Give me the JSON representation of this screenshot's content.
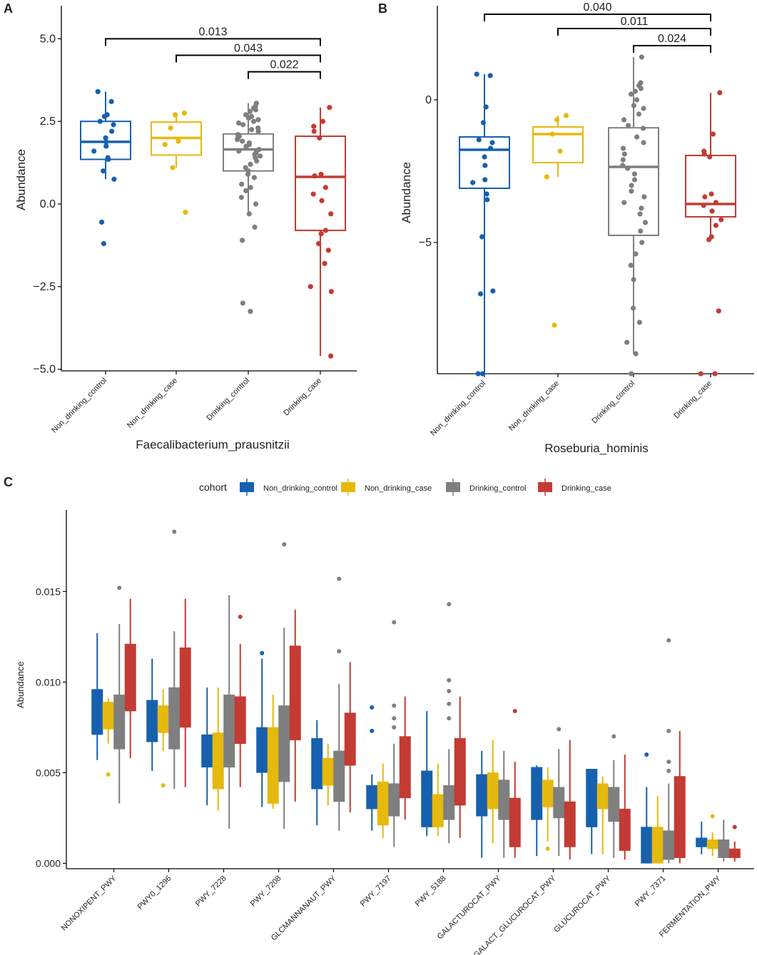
{
  "colors": {
    "Non_drinking_control": "#1660AE",
    "Non_drinking_case": "#E6B90E",
    "Drinking_control": "#7F7F7F",
    "Drinking_case": "#C33B33",
    "axis": "#000000"
  },
  "chart_data": [
    {
      "panel": "A",
      "type": "box",
      "title": "",
      "xlabel": "Faecalibacterium_prausnitzii",
      "ylabel": "Abundance",
      "ylim": [
        -5.05,
        6.0
      ],
      "yticks": [
        5.0,
        2.5,
        0.0,
        -2.5,
        -5.0
      ],
      "ytick_labels": [
        "5.0",
        "2.5",
        "0.0",
        "−2.5",
        "−5.0"
      ],
      "categories": [
        "Non_drinking_control",
        "Non_drinking_case",
        "Drinking_control",
        "Drinking_case"
      ],
      "boxes": [
        {
          "q1": 1.35,
          "median": 1.88,
          "q3": 2.5,
          "whisker_low": 0.75,
          "whisker_high": 3.4,
          "points": [
            3.4,
            3.1,
            2.7,
            2.65,
            2.5,
            2.4,
            2.2,
            2.0,
            1.88,
            1.75,
            1.6,
            1.4,
            1.35,
            1.0,
            0.75,
            -0.55,
            -1.2
          ]
        },
        {
          "q1": 1.48,
          "median": 2.0,
          "q3": 2.48,
          "whisker_low": 1.1,
          "whisker_high": 2.75,
          "points": [
            2.75,
            2.7,
            2.3,
            1.9,
            1.8,
            1.1,
            -0.25
          ]
        },
        {
          "q1": 1.0,
          "median": 1.65,
          "q3": 2.12,
          "whisker_low": -0.3,
          "whisker_high": 3.05,
          "points": [
            3.05,
            2.95,
            2.9,
            2.85,
            2.8,
            2.7,
            2.65,
            2.6,
            2.55,
            2.5,
            2.45,
            2.4,
            2.3,
            2.25,
            2.2,
            2.1,
            2.05,
            2.0,
            1.95,
            1.9,
            1.85,
            1.8,
            1.75,
            1.7,
            1.65,
            1.6,
            1.55,
            1.5,
            1.45,
            1.4,
            1.3,
            1.2,
            1.1,
            1.0,
            0.9,
            0.8,
            0.6,
            0.5,
            0.4,
            0.2,
            0.0,
            -0.3,
            -0.7,
            -1.1,
            -3.0,
            -3.25
          ]
        },
        {
          "q1": -0.8,
          "median": 0.82,
          "q3": 2.05,
          "whisker_low": -4.6,
          "whisker_high": 2.92,
          "points": [
            2.92,
            2.5,
            2.35,
            2.2,
            2.0,
            0.9,
            0.85,
            0.5,
            0.3,
            0.1,
            -0.3,
            -0.8,
            -0.9,
            -1.2,
            -1.4,
            -1.8,
            -2.5,
            -2.65,
            -4.6
          ]
        }
      ],
      "comparisons": [
        {
          "from": 0,
          "to": 3,
          "label": "0.013",
          "y": 5.0
        },
        {
          "from": 1,
          "to": 3,
          "label": "0.043",
          "y": 4.5
        },
        {
          "from": 2,
          "to": 3,
          "label": "0.022",
          "y": 4.0
        }
      ]
    },
    {
      "panel": "B",
      "type": "box",
      "title": "",
      "xlabel": "Roseburia_hominis",
      "ylabel": "Abundance",
      "ylim": [
        -9.6,
        3.3
      ],
      "yticks": [
        0,
        -5
      ],
      "ytick_labels": [
        "0",
        "−5"
      ],
      "categories": [
        "Non_drinking_control",
        "Non_drinking_case",
        "Drinking_control",
        "Drinking_case"
      ],
      "boxes": [
        {
          "q1": -3.1,
          "median": -1.75,
          "q3": -1.3,
          "whisker_low": -9.6,
          "whisker_high": 0.9,
          "points": [
            0.9,
            0.85,
            -0.25,
            -0.8,
            -1.4,
            -1.5,
            -1.7,
            -2.0,
            -2.3,
            -2.8,
            -2.9,
            -3.3,
            -3.5,
            -4.8,
            -6.7,
            -6.8,
            -9.6,
            -9.6
          ]
        },
        {
          "q1": -2.2,
          "median": -1.2,
          "q3": -0.95,
          "whisker_low": -2.7,
          "whisker_high": -0.55,
          "points": [
            -0.55,
            -0.7,
            -1.2,
            -1.8,
            -2.7,
            -7.9
          ]
        },
        {
          "q1": -4.75,
          "median": -2.35,
          "q3": -0.98,
          "whisker_low": -8.9,
          "whisker_high": 1.5,
          "points": [
            1.5,
            0.6,
            0.5,
            0.4,
            0.3,
            0.2,
            0.0,
            -0.2,
            -0.3,
            -0.5,
            -0.7,
            -0.9,
            -1.0,
            -1.3,
            -1.5,
            -1.7,
            -1.9,
            -2.1,
            -2.3,
            -2.4,
            -2.6,
            -2.8,
            -3.0,
            -3.2,
            -3.4,
            -3.6,
            -3.8,
            -4.0,
            -4.3,
            -4.6,
            -5.0,
            -5.4,
            -5.8,
            -6.3,
            -7.3,
            -7.8,
            -8.5,
            -8.9,
            -9.6
          ]
        },
        {
          "q1": -4.1,
          "median": -3.65,
          "q3": -1.95,
          "whisker_low": -4.9,
          "whisker_high": 0.25,
          "points": [
            0.25,
            -1.2,
            -1.8,
            -1.9,
            -2.0,
            -3.3,
            -3.4,
            -3.6,
            -3.7,
            -3.9,
            -4.2,
            -4.4,
            -4.8,
            -4.9,
            -7.4,
            -9.6,
            -9.6
          ]
        }
      ],
      "comparisons": [
        {
          "from": 0,
          "to": 3,
          "label": "0.040",
          "y": 3.0
        },
        {
          "from": 1,
          "to": 3,
          "label": "0.011",
          "y": 2.5
        },
        {
          "from": 2,
          "to": 3,
          "label": "0.024",
          "y": 1.9
        }
      ]
    },
    {
      "panel": "C",
      "type": "box",
      "title": "",
      "xlabel": "",
      "ylabel": "Abundance",
      "ylim": [
        -0.0003,
        0.0195
      ],
      "yticks": [
        0.015,
        0.01,
        0.005,
        0.0
      ],
      "ytick_labels": [
        "0.015",
        "0.010",
        "0.005",
        "0.000"
      ],
      "legend": {
        "title": "cohort",
        "position": "top",
        "entries": [
          "Non_drinking_control",
          "Non_drinking_case",
          "Drinking_control",
          "Drinking_case"
        ]
      },
      "series_order": [
        "Non_drinking_control",
        "Non_drinking_case",
        "Drinking_control",
        "Drinking_case"
      ],
      "categories": [
        "NONOXIPENT_PWY",
        "PWY0_1296",
        "PWY_7228",
        "PWY_7208",
        "GLCMANNANAUT_PWY",
        "PWY_7197",
        "PWY_5188",
        "GALACTUROCAT_PWY",
        "GALACT_GLUCUROCAT_PWY",
        "GLUCUROCAT_PWY",
        "PWY_7371",
        "FERMENTATION_PWY"
      ],
      "groups": [
        {
          "boxes": [
            {
              "q1": 0.0071,
              "median": 0.0084,
              "q3": 0.0096,
              "lo": 0.0057,
              "hi": 0.0127,
              "out": []
            },
            {
              "q1": 0.0074,
              "median": 0.0081,
              "q3": 0.0089,
              "lo": 0.0066,
              "hi": 0.0091,
              "out": [
                0.0049
              ]
            },
            {
              "q1": 0.0063,
              "median": 0.0078,
              "q3": 0.0093,
              "lo": 0.0033,
              "hi": 0.0132,
              "out": [
                0.0152
              ]
            },
            {
              "q1": 0.0084,
              "median": 0.0098,
              "q3": 0.0121,
              "lo": 0.0058,
              "hi": 0.0146,
              "out": []
            }
          ]
        },
        {
          "boxes": [
            {
              "q1": 0.0067,
              "median": 0.0078,
              "q3": 0.009,
              "lo": 0.0051,
              "hi": 0.0113,
              "out": []
            },
            {
              "q1": 0.0072,
              "median": 0.0079,
              "q3": 0.0087,
              "lo": 0.0062,
              "hi": 0.0096,
              "out": [
                0.0043
              ]
            },
            {
              "q1": 0.0063,
              "median": 0.0082,
              "q3": 0.0097,
              "lo": 0.0041,
              "hi": 0.0128,
              "out": [
                0.0183
              ]
            },
            {
              "q1": 0.0075,
              "median": 0.0094,
              "q3": 0.0119,
              "lo": 0.0042,
              "hi": 0.0146,
              "out": []
            }
          ]
        },
        {
          "boxes": [
            {
              "q1": 0.0053,
              "median": 0.0062,
              "q3": 0.0071,
              "lo": 0.0032,
              "hi": 0.0097,
              "out": []
            },
            {
              "q1": 0.0041,
              "median": 0.0057,
              "q3": 0.0072,
              "lo": 0.0029,
              "hi": 0.0097,
              "out": []
            },
            {
              "q1": 0.0053,
              "median": 0.007,
              "q3": 0.0093,
              "lo": 0.0019,
              "hi": 0.0148,
              "out": []
            },
            {
              "q1": 0.0066,
              "median": 0.0077,
              "q3": 0.0092,
              "lo": 0.0042,
              "hi": 0.0121,
              "out": [
                0.0136
              ]
            }
          ]
        },
        {
          "boxes": [
            {
              "q1": 0.005,
              "median": 0.0062,
              "q3": 0.0075,
              "lo": 0.0031,
              "hi": 0.0113,
              "out": [
                0.0116
              ]
            },
            {
              "q1": 0.0033,
              "median": 0.0054,
              "q3": 0.0075,
              "lo": 0.003,
              "hi": 0.0093,
              "out": []
            },
            {
              "q1": 0.0045,
              "median": 0.0062,
              "q3": 0.0087,
              "lo": 0.0019,
              "hi": 0.013,
              "out": [
                0.0176
              ]
            },
            {
              "q1": 0.0068,
              "median": 0.0088,
              "q3": 0.012,
              "lo": 0.0034,
              "hi": 0.014,
              "out": []
            }
          ]
        },
        {
          "boxes": [
            {
              "q1": 0.0041,
              "median": 0.0056,
              "q3": 0.0069,
              "lo": 0.0021,
              "hi": 0.0079,
              "out": []
            },
            {
              "q1": 0.0043,
              "median": 0.005,
              "q3": 0.0058,
              "lo": 0.0032,
              "hi": 0.0066,
              "out": []
            },
            {
              "q1": 0.0034,
              "median": 0.0049,
              "q3": 0.0062,
              "lo": 0.0018,
              "hi": 0.0099,
              "out": [
                0.0117,
                0.0157
              ]
            },
            {
              "q1": 0.0054,
              "median": 0.0068,
              "q3": 0.0083,
              "lo": 0.0028,
              "hi": 0.0111,
              "out": []
            }
          ]
        },
        {
          "boxes": [
            {
              "q1": 0.003,
              "median": 0.0036,
              "q3": 0.0043,
              "lo": 0.0018,
              "hi": 0.0049,
              "out": [
                0.0073,
                0.0086
              ]
            },
            {
              "q1": 0.0021,
              "median": 0.0031,
              "q3": 0.0045,
              "lo": 0.0014,
              "hi": 0.0055,
              "out": []
            },
            {
              "q1": 0.0026,
              "median": 0.0034,
              "q3": 0.0044,
              "lo": 0.0009,
              "hi": 0.0066,
              "out": [
                0.0075,
                0.008,
                0.0087,
                0.0133
              ]
            },
            {
              "q1": 0.0036,
              "median": 0.005,
              "q3": 0.007,
              "lo": 0.0024,
              "hi": 0.0092,
              "out": []
            }
          ]
        },
        {
          "boxes": [
            {
              "q1": 0.002,
              "median": 0.0034,
              "q3": 0.0051,
              "lo": 0.0015,
              "hi": 0.0084,
              "out": []
            },
            {
              "q1": 0.002,
              "median": 0.0028,
              "q3": 0.0038,
              "lo": 0.0015,
              "hi": 0.0055,
              "out": []
            },
            {
              "q1": 0.0024,
              "median": 0.0033,
              "q3": 0.0043,
              "lo": 0.0011,
              "hi": 0.0063,
              "out": [
                0.008,
                0.0088,
                0.0095,
                0.0101,
                0.0143
              ]
            },
            {
              "q1": 0.0032,
              "median": 0.0045,
              "q3": 0.0069,
              "lo": 0.0014,
              "hi": 0.0092,
              "out": []
            }
          ]
        },
        {
          "boxes": [
            {
              "q1": 0.0026,
              "median": 0.004,
              "q3": 0.0049,
              "lo": 0.0003,
              "hi": 0.0062,
              "out": []
            },
            {
              "q1": 0.003,
              "median": 0.0043,
              "q3": 0.005,
              "lo": 0.0011,
              "hi": 0.0068,
              "out": []
            },
            {
              "q1": 0.0024,
              "median": 0.0038,
              "q3": 0.0046,
              "lo": 0.0003,
              "hi": 0.0062,
              "out": []
            },
            {
              "q1": 0.0009,
              "median": 0.0024,
              "q3": 0.0036,
              "lo": 0.0003,
              "hi": 0.0056,
              "out": [
                0.0084
              ]
            }
          ]
        },
        {
          "boxes": [
            {
              "q1": 0.0024,
              "median": 0.0043,
              "q3": 0.0053,
              "lo": 0.0004,
              "hi": 0.0054,
              "out": []
            },
            {
              "q1": 0.0031,
              "median": 0.0039,
              "q3": 0.0046,
              "lo": 0.0012,
              "hi": 0.0053,
              "out": [
                0.0008
              ]
            },
            {
              "q1": 0.0025,
              "median": 0.0033,
              "q3": 0.0042,
              "lo": 0.0004,
              "hi": 0.0063,
              "out": [
                0.0074
              ]
            },
            {
              "q1": 0.0009,
              "median": 0.0023,
              "q3": 0.0034,
              "lo": 0.0002,
              "hi": 0.0068,
              "out": []
            }
          ]
        },
        {
          "boxes": [
            {
              "q1": 0.002,
              "median": 0.0039,
              "q3": 0.0052,
              "lo": 0.0005,
              "hi": 0.0052,
              "out": []
            },
            {
              "q1": 0.003,
              "median": 0.0037,
              "q3": 0.0044,
              "lo": 0.0005,
              "hi": 0.0048,
              "out": []
            },
            {
              "q1": 0.0023,
              "median": 0.0033,
              "q3": 0.0042,
              "lo": 0.0003,
              "hi": 0.0057,
              "out": [
                0.007
              ]
            },
            {
              "q1": 0.0007,
              "median": 0.0018,
              "q3": 0.003,
              "lo": 0.0002,
              "hi": 0.006,
              "out": []
            }
          ]
        },
        {
          "boxes": [
            {
              "q1": 0.0,
              "median": 0.001,
              "q3": 0.002,
              "lo": 0.0,
              "hi": 0.0042,
              "out": [
                0.006
              ]
            },
            {
              "q1": 0.0,
              "median": 0.0012,
              "q3": 0.002,
              "lo": 0.0,
              "hi": 0.0037,
              "out": []
            },
            {
              "q1": 0.0002,
              "median": 0.0009,
              "q3": 0.0018,
              "lo": 0.0,
              "hi": 0.0044,
              "out": [
                0.0051,
                0.0056,
                0.0073,
                0.0123
              ]
            },
            {
              "q1": 0.0003,
              "median": 0.0025,
              "q3": 0.0048,
              "lo": 0.0,
              "hi": 0.0073,
              "out": []
            }
          ]
        },
        {
          "boxes": [
            {
              "q1": 0.0009,
              "median": 0.0012,
              "q3": 0.0014,
              "lo": 0.0005,
              "hi": 0.0023,
              "out": []
            },
            {
              "q1": 0.0008,
              "median": 0.0011,
              "q3": 0.0013,
              "lo": 0.0004,
              "hi": 0.0017,
              "out": [
                0.0026
              ]
            },
            {
              "q1": 0.0003,
              "median": 0.0008,
              "q3": 0.0013,
              "lo": 0.0001,
              "hi": 0.0024,
              "out": []
            },
            {
              "q1": 0.0003,
              "median": 0.0005,
              "q3": 0.0008,
              "lo": 0.0001,
              "hi": 0.0012,
              "out": [
                0.002
              ]
            }
          ]
        }
      ]
    }
  ],
  "panel_labels": [
    "A",
    "B",
    "C"
  ]
}
